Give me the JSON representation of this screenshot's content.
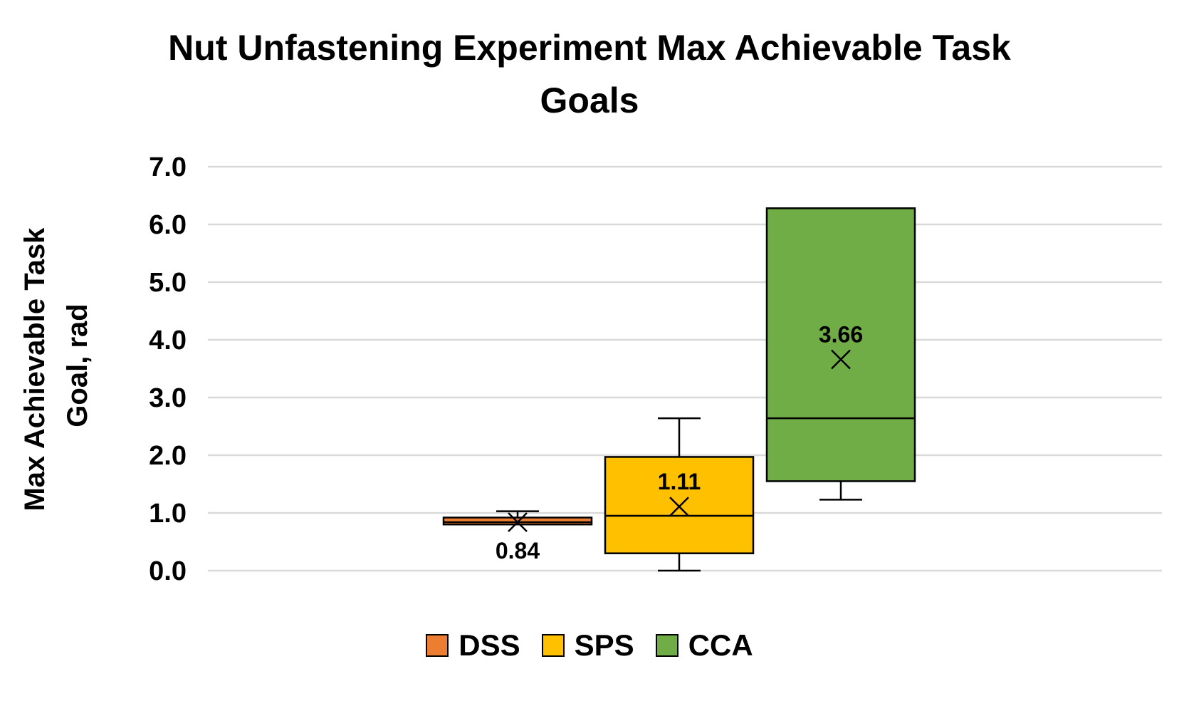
{
  "chart_data": {
    "type": "box",
    "title": "Nut Unfastening Experiment Max Achievable Task Goals",
    "title_lines": [
      "Nut Unfastening Experiment Max Achievable Task",
      "Goals"
    ],
    "ylabel_lines": [
      "Max Achievable Task",
      "Goal, rad"
    ],
    "ylim": [
      0,
      7
    ],
    "y_ticks": [
      "0.0",
      "1.0",
      "2.0",
      "3.0",
      "4.0",
      "5.0",
      "6.0",
      "7.0"
    ],
    "grid": true,
    "legend_position": "bottom",
    "series": [
      {
        "name": "DSS",
        "color": "#ED7D31",
        "min": 0.8,
        "q1": 0.8,
        "median": 0.84,
        "q3": 0.92,
        "max": 1.03,
        "mean": 0.84,
        "mean_label": "0.84"
      },
      {
        "name": "SPS",
        "color": "#FFC000",
        "min": 0.0,
        "q1": 0.3,
        "median": 0.95,
        "q3": 1.97,
        "max": 2.64,
        "mean": 1.11,
        "mean_label": "1.11"
      },
      {
        "name": "CCA",
        "color": "#70AD47",
        "min": 1.23,
        "q1": 1.55,
        "median": 2.64,
        "q3": 6.28,
        "max": 6.28,
        "mean": 3.66,
        "mean_label": "3.66"
      }
    ]
  }
}
